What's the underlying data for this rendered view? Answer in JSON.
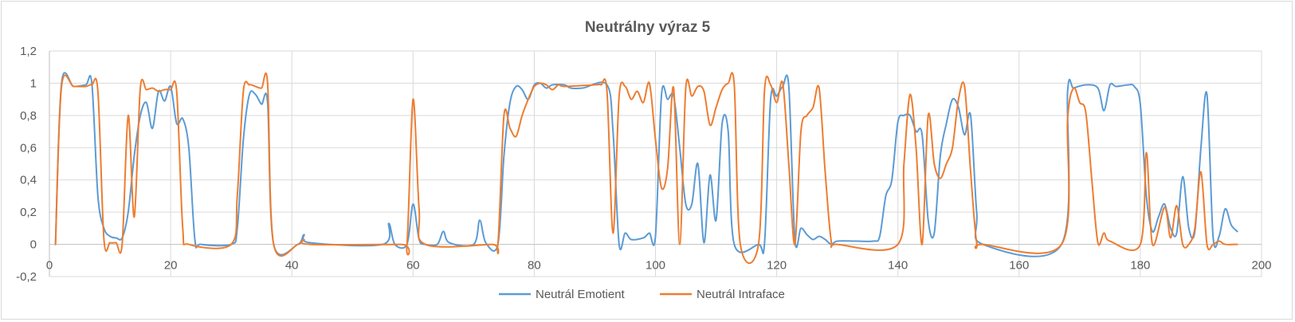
{
  "chart_data": {
    "type": "line",
    "title": "Neutrálny výraz 5",
    "xlabel": "",
    "ylabel": "",
    "xlim": [
      0,
      200
    ],
    "ylim": [
      -0.2,
      1.2
    ],
    "x_ticks": [
      0,
      20,
      40,
      60,
      80,
      100,
      120,
      140,
      160,
      180,
      200
    ],
    "x_tick_labels": [
      "0",
      "20",
      "40",
      "60",
      "80",
      "100",
      "120",
      "140",
      "160",
      "180",
      "200"
    ],
    "y_ticks": [
      -0.2,
      0,
      0.2,
      0.4,
      0.6,
      0.8,
      1,
      1.2
    ],
    "y_tick_labels": [
      "-0,2",
      "0",
      "0,2",
      "0,4",
      "0,6",
      "0,8",
      "1",
      "1,2"
    ],
    "grid": true,
    "legend_position": "bottom",
    "series": [
      {
        "name": "Neutrál Emotient",
        "color": "#5b9bd5",
        "points": [
          [
            1,
            0.0
          ],
          [
            2,
            1.0
          ],
          [
            4,
            0.98
          ],
          [
            6,
            0.99
          ],
          [
            7,
            1.0
          ],
          [
            8,
            0.3
          ],
          [
            9,
            0.1
          ],
          [
            10,
            0.05
          ],
          [
            11,
            0.04
          ],
          [
            12,
            0.04
          ],
          [
            13,
            0.2
          ],
          [
            14,
            0.55
          ],
          [
            15,
            0.8
          ],
          [
            16,
            0.88
          ],
          [
            17,
            0.72
          ],
          [
            18,
            0.95
          ],
          [
            19,
            0.89
          ],
          [
            20,
            0.98
          ],
          [
            21,
            0.75
          ],
          [
            22,
            0.78
          ],
          [
            23,
            0.6
          ],
          [
            24,
            0.03
          ],
          [
            25,
            0.0
          ],
          [
            30,
            0.0
          ],
          [
            31,
            0.1
          ],
          [
            32,
            0.65
          ],
          [
            33,
            0.93
          ],
          [
            34,
            0.93
          ],
          [
            35,
            0.87
          ],
          [
            36,
            0.88
          ],
          [
            37,
            0.0
          ],
          [
            41,
            0.0
          ],
          [
            42,
            0.06
          ],
          [
            43,
            0.01
          ],
          [
            55,
            0.0
          ],
          [
            56,
            0.13
          ],
          [
            57,
            0.0
          ],
          [
            59,
            0.0
          ],
          [
            60,
            0.25
          ],
          [
            61,
            0.03
          ],
          [
            62,
            0.0
          ],
          [
            64,
            0.0
          ],
          [
            65,
            0.08
          ],
          [
            66,
            0.01
          ],
          [
            70,
            0.0
          ],
          [
            71,
            0.15
          ],
          [
            72,
            0.01
          ],
          [
            74,
            0.0
          ],
          [
            75,
            0.55
          ],
          [
            76,
            0.88
          ],
          [
            77,
            0.98
          ],
          [
            78,
            0.96
          ],
          [
            79,
            0.9
          ],
          [
            80,
            0.99
          ],
          [
            81,
            1.0
          ],
          [
            82,
            0.97
          ],
          [
            83,
            0.99
          ],
          [
            85,
            0.99
          ],
          [
            86,
            0.97
          ],
          [
            88,
            0.97
          ],
          [
            92,
            0.99
          ],
          [
            93,
            0.7
          ],
          [
            94,
            0.0
          ],
          [
            95,
            0.07
          ],
          [
            96,
            0.03
          ],
          [
            98,
            0.04
          ],
          [
            99,
            0.07
          ],
          [
            100,
            0.05
          ],
          [
            101,
            0.93
          ],
          [
            102,
            0.9
          ],
          [
            103,
            0.92
          ],
          [
            104,
            0.6
          ],
          [
            105,
            0.25
          ],
          [
            106,
            0.25
          ],
          [
            107,
            0.5
          ],
          [
            108,
            0.01
          ],
          [
            109,
            0.43
          ],
          [
            110,
            0.15
          ],
          [
            111,
            0.75
          ],
          [
            112,
            0.7
          ],
          [
            113,
            0.0
          ],
          [
            117,
            0.0
          ],
          [
            118,
            0.01
          ],
          [
            119,
            0.9
          ],
          [
            120,
            0.92
          ],
          [
            121,
            0.98
          ],
          [
            122,
            0.98
          ],
          [
            123,
            0.03
          ],
          [
            124,
            0.1
          ],
          [
            125,
            0.06
          ],
          [
            126,
            0.03
          ],
          [
            127,
            0.05
          ],
          [
            128,
            0.03
          ],
          [
            129,
            0.0
          ],
          [
            130,
            0.02
          ],
          [
            133,
            0.02
          ],
          [
            136,
            0.02
          ],
          [
            137,
            0.05
          ],
          [
            138,
            0.3
          ],
          [
            139,
            0.4
          ],
          [
            140,
            0.76
          ],
          [
            141,
            0.8
          ],
          [
            142,
            0.8
          ],
          [
            143,
            0.7
          ],
          [
            144,
            0.68
          ],
          [
            145,
            0.15
          ],
          [
            146,
            0.07
          ],
          [
            147,
            0.55
          ],
          [
            148,
            0.75
          ],
          [
            149,
            0.9
          ],
          [
            150,
            0.85
          ],
          [
            151,
            0.68
          ],
          [
            152,
            0.8
          ],
          [
            153,
            0.2
          ],
          [
            154,
            0.0
          ],
          [
            167,
            0.0
          ],
          [
            168,
            0.95
          ],
          [
            169,
            0.97
          ],
          [
            171,
            0.99
          ],
          [
            173,
            0.97
          ],
          [
            174,
            0.83
          ],
          [
            175,
            0.99
          ],
          [
            176,
            0.98
          ],
          [
            178,
            0.99
          ],
          [
            179,
            0.98
          ],
          [
            180,
            0.87
          ],
          [
            181,
            0.3
          ],
          [
            182,
            0.08
          ],
          [
            183,
            0.17
          ],
          [
            184,
            0.25
          ],
          [
            185,
            0.1
          ],
          [
            186,
            0.07
          ],
          [
            187,
            0.42
          ],
          [
            188,
            0.1
          ],
          [
            189,
            0.08
          ],
          [
            190,
            0.6
          ],
          [
            191,
            0.93
          ],
          [
            192,
            0.05
          ],
          [
            193,
            0.05
          ],
          [
            194,
            0.22
          ],
          [
            195,
            0.12
          ],
          [
            196,
            0.08
          ]
        ]
      },
      {
        "name": "Neutrál Intraface",
        "color": "#ed7d31",
        "points": [
          [
            1,
            0.0
          ],
          [
            2,
            0.98
          ],
          [
            4,
            0.98
          ],
          [
            6,
            0.98
          ],
          [
            7,
            0.99
          ],
          [
            8,
            0.95
          ],
          [
            9,
            0.03
          ],
          [
            10,
            0.01
          ],
          [
            11,
            0.01
          ],
          [
            12,
            0.0
          ],
          [
            13,
            0.8
          ],
          [
            14,
            0.17
          ],
          [
            15,
            0.97
          ],
          [
            16,
            0.96
          ],
          [
            17,
            0.97
          ],
          [
            18,
            0.95
          ],
          [
            19,
            0.96
          ],
          [
            20,
            0.96
          ],
          [
            21,
            0.95
          ],
          [
            22,
            0.1
          ],
          [
            23,
            0.0
          ],
          [
            30,
            0.0
          ],
          [
            31,
            0.3
          ],
          [
            32,
            0.95
          ],
          [
            33,
            0.99
          ],
          [
            34,
            0.98
          ],
          [
            35,
            0.97
          ],
          [
            36,
            1.0
          ],
          [
            37,
            0.0
          ],
          [
            41,
            0.0
          ],
          [
            42,
            0.03
          ],
          [
            43,
            0.0
          ],
          [
            58,
            0.0
          ],
          [
            59,
            0.0
          ],
          [
            60,
            0.9
          ],
          [
            61,
            0.22
          ],
          [
            62,
            0.0
          ],
          [
            73,
            0.0
          ],
          [
            74,
            0.0
          ],
          [
            75,
            0.8
          ],
          [
            76,
            0.72
          ],
          [
            77,
            0.67
          ],
          [
            78,
            0.8
          ],
          [
            79,
            0.9
          ],
          [
            80,
            0.98
          ],
          [
            81,
            1.0
          ],
          [
            82,
            0.99
          ],
          [
            83,
            0.96
          ],
          [
            84,
            0.99
          ],
          [
            85,
            0.98
          ],
          [
            90,
            0.99
          ],
          [
            91,
            0.99
          ],
          [
            92,
            0.95
          ],
          [
            93,
            0.07
          ],
          [
            94,
            0.92
          ],
          [
            95,
            0.98
          ],
          [
            96,
            0.9
          ],
          [
            97,
            0.95
          ],
          [
            98,
            0.88
          ],
          [
            99,
            1.0
          ],
          [
            100,
            0.65
          ],
          [
            101,
            0.35
          ],
          [
            102,
            0.47
          ],
          [
            103,
            0.97
          ],
          [
            104,
            0.0
          ],
          [
            105,
            0.97
          ],
          [
            106,
            0.92
          ],
          [
            107,
            0.98
          ],
          [
            108,
            0.95
          ],
          [
            109,
            0.74
          ],
          [
            110,
            0.85
          ],
          [
            111,
            0.96
          ],
          [
            112,
            1.0
          ],
          [
            113,
            0.99
          ],
          [
            114,
            0.0
          ],
          [
            117,
            0.0
          ],
          [
            118,
            0.96
          ],
          [
            119,
            0.99
          ],
          [
            120,
            0.88
          ],
          [
            121,
            1.0
          ],
          [
            122,
            0.5
          ],
          [
            123,
            0.0
          ],
          [
            124,
            0.7
          ],
          [
            125,
            0.8
          ],
          [
            126,
            0.85
          ],
          [
            127,
            0.97
          ],
          [
            128,
            0.45
          ],
          [
            129,
            0.02
          ],
          [
            130,
            0.0
          ],
          [
            140,
            0.0
          ],
          [
            141,
            0.5
          ],
          [
            142,
            0.93
          ],
          [
            143,
            0.6
          ],
          [
            144,
            0.0
          ],
          [
            145,
            0.8
          ],
          [
            146,
            0.5
          ],
          [
            147,
            0.41
          ],
          [
            148,
            0.5
          ],
          [
            149,
            0.6
          ],
          [
            150,
            0.9
          ],
          [
            151,
            0.98
          ],
          [
            152,
            0.45
          ],
          [
            153,
            0.01
          ],
          [
            154,
            0.0
          ],
          [
            167,
            0.0
          ],
          [
            168,
            0.78
          ],
          [
            169,
            0.97
          ],
          [
            170,
            0.88
          ],
          [
            171,
            0.82
          ],
          [
            172,
            0.4
          ],
          [
            173,
            0.01
          ],
          [
            174,
            0.07
          ],
          [
            175,
            0.02
          ],
          [
            180,
            0.0
          ],
          [
            181,
            0.57
          ],
          [
            182,
            0.0
          ],
          [
            184,
            0.23
          ],
          [
            185,
            0.04
          ],
          [
            186,
            0.24
          ],
          [
            187,
            0.0
          ],
          [
            188,
            0.0
          ],
          [
            189,
            0.1
          ],
          [
            190,
            0.45
          ],
          [
            191,
            0.0
          ],
          [
            192,
            0.0
          ],
          [
            193,
            0.02
          ],
          [
            194,
            0.0
          ],
          [
            196,
            0.0
          ]
        ]
      }
    ]
  }
}
